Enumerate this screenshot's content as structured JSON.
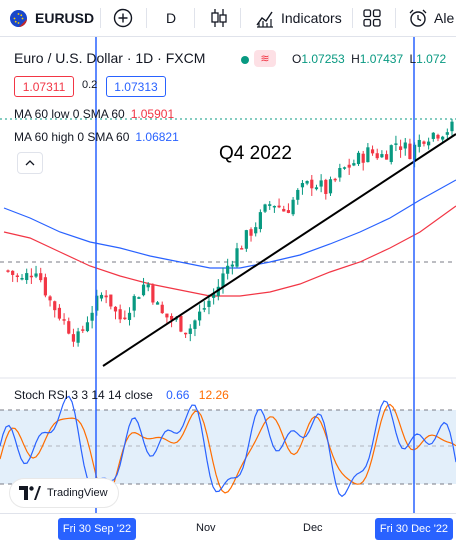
{
  "toolbar": {
    "symbol": "EURUSD",
    "interval": "D",
    "indicators_label": "Indicators",
    "alert_label": "Ale"
  },
  "legend": {
    "title": "Euro / U.S. Dollar · 1D · FXCM",
    "ohlc": [
      {
        "label": "O",
        "value": "1.07253"
      },
      {
        "label": "H",
        "value": "1.07437"
      },
      {
        "label": "L",
        "value": "1.072"
      }
    ],
    "sell_price": "1.07311",
    "spread": "0.2",
    "buy_price": "1.07313"
  },
  "indicators": [
    {
      "label": "MA 60 low 0 SMA 60",
      "value": "1.05901",
      "color": "#f23645"
    },
    {
      "label": "MA 60 high 0 SMA 60",
      "value": "1.06821",
      "color": "#2962ff"
    }
  ],
  "annotation": "Q4 2022",
  "stoch": {
    "label": "Stoch RSI 3 3 14 14 close",
    "k_value": "0.66",
    "d_value": "12.26",
    "k_color": "#2962ff",
    "d_color": "#ff6d00"
  },
  "watermark": "TradingView",
  "time_axis": {
    "labels": [
      "Nov",
      "Dec"
    ],
    "pill_left": "Fri 30 Sep '22",
    "pill_right": "Fri 30 Dec '22"
  },
  "colors": {
    "up": "#089981",
    "down": "#f23645",
    "accent": "#2962ff",
    "ma_low": "#f23645",
    "ma_high": "#2962ff"
  },
  "chart_data": {
    "type": "candlestick",
    "symbol": "EURUSD",
    "interval": "1D",
    "x_range": [
      "2022-08-20",
      "2023-01-06"
    ],
    "approx_close_path": [
      1.0,
      0.995,
      1.002,
      0.985,
      0.975,
      0.965,
      0.98,
      0.99,
      0.975,
      0.985,
      0.995,
      0.978,
      0.975,
      0.97,
      0.98,
      0.99,
      1.005,
      1.015,
      1.025,
      1.035,
      1.03,
      1.04,
      1.045,
      1.04,
      1.05,
      1.055,
      1.06,
      1.058,
      1.065,
      1.06,
      1.068,
      1.07,
      1.072
    ],
    "ma60_low_last": 1.05901,
    "ma60_high_last": 1.06821,
    "stoch_k": 0.66,
    "stoch_d": 12.26
  }
}
